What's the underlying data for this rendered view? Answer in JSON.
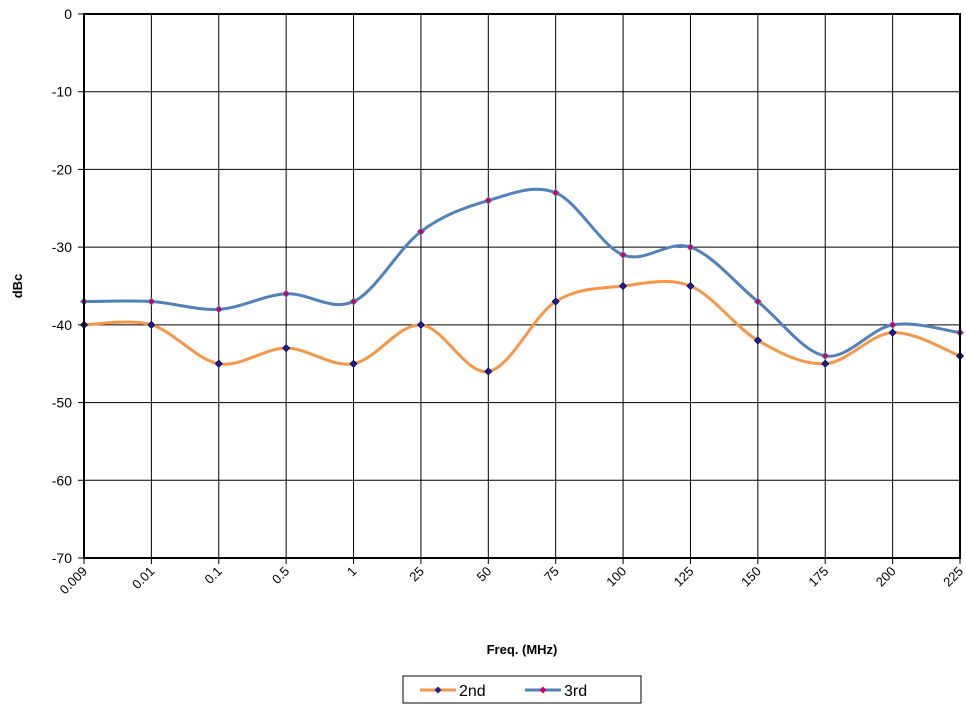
{
  "chart_data": {
    "type": "line",
    "smooth": true,
    "xlabel": "Freq. (MHz)",
    "ylabel": "dBc",
    "ylim": [
      -70,
      0
    ],
    "yticks": [
      0,
      -10,
      -20,
      -30,
      -40,
      -50,
      -60,
      -70
    ],
    "grid": true,
    "legend": "bottom-center",
    "categories": [
      "0.009",
      "0.01",
      "0.1",
      "0.5",
      "1",
      "25",
      "50",
      "75",
      "100",
      "125",
      "150",
      "175",
      "200",
      "225"
    ],
    "series": [
      {
        "name": "2nd",
        "color": "#F79646",
        "marker_color": "#1F1F8F",
        "values": [
          -40,
          -40,
          -45,
          -43,
          -45,
          -40,
          -46,
          -37,
          -35,
          -35,
          -42,
          -45,
          -41,
          -44
        ]
      },
      {
        "name": "3rd",
        "color": "#4F81BD",
        "marker_color": "#CC0066",
        "values": [
          -37,
          -37,
          -38,
          -36,
          -37,
          -28,
          -24,
          -23,
          -31,
          -30,
          -37,
          -44,
          -40,
          -41
        ]
      }
    ]
  }
}
